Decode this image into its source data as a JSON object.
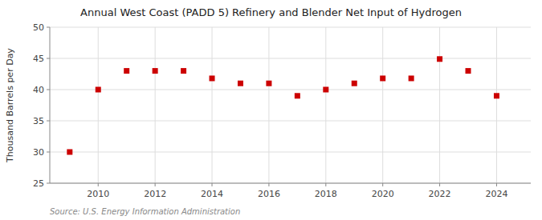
{
  "chart_data": {
    "type": "scatter",
    "title": "Annual West Coast (PADD 5) Refinery and Blender Net Input of Hydrogen",
    "ylabel": "Thousand Barrels per Day",
    "source": "Source: U.S. Energy Information Administration",
    "x": [
      2009,
      2010,
      2011,
      2012,
      2013,
      2014,
      2015,
      2016,
      2017,
      2018,
      2019,
      2020,
      2021,
      2022,
      2023,
      2024
    ],
    "values": [
      30.0,
      40.0,
      43.0,
      43.0,
      43.0,
      41.8,
      41.0,
      41.0,
      39.0,
      40.0,
      41.0,
      41.8,
      41.8,
      44.9,
      43.0,
      39.0
    ],
    "color": "#cc0000",
    "marker": "square",
    "xlim": [
      2008.3,
      2025.2
    ],
    "ylim": [
      25,
      50
    ],
    "xticks": [
      2010,
      2012,
      2014,
      2016,
      2018,
      2020,
      2022,
      2024
    ],
    "yticks": [
      25,
      30,
      35,
      40,
      45,
      50
    ],
    "grid": true
  }
}
